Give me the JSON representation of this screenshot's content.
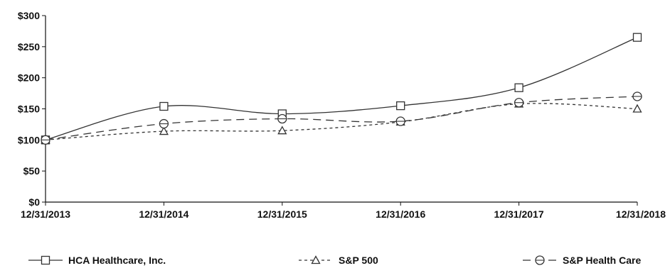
{
  "chart_data": {
    "type": "line",
    "title": "",
    "xlabel": "",
    "ylabel": "",
    "categories": [
      "12/31/2013",
      "12/31/2014",
      "12/31/2015",
      "12/31/2016",
      "12/31/2017",
      "12/31/2018"
    ],
    "ylim": [
      0,
      300
    ],
    "yticks": [
      "$0",
      "$50",
      "$100",
      "$150",
      "$200",
      "$250",
      "$300"
    ],
    "ytick_values": [
      0,
      50,
      100,
      150,
      200,
      250,
      300
    ],
    "grid": false,
    "legend_position": "bottom",
    "series": [
      {
        "name": "HCA Healthcare, Inc.",
        "values": [
          100,
          154,
          142,
          155,
          184,
          265
        ],
        "marker": "square",
        "dash": "solid"
      },
      {
        "name": "S&P 500",
        "values": [
          100,
          114,
          115,
          129,
          158,
          150
        ],
        "marker": "triangle",
        "dash": "short-dash"
      },
      {
        "name": "S&P Health Care",
        "values": [
          100,
          126,
          134,
          130,
          160,
          170
        ],
        "marker": "circle",
        "dash": "long-dash"
      }
    ],
    "colors": {
      "line": "#333333",
      "axis": "#111111",
      "marker_fill": "#ffffff"
    }
  }
}
